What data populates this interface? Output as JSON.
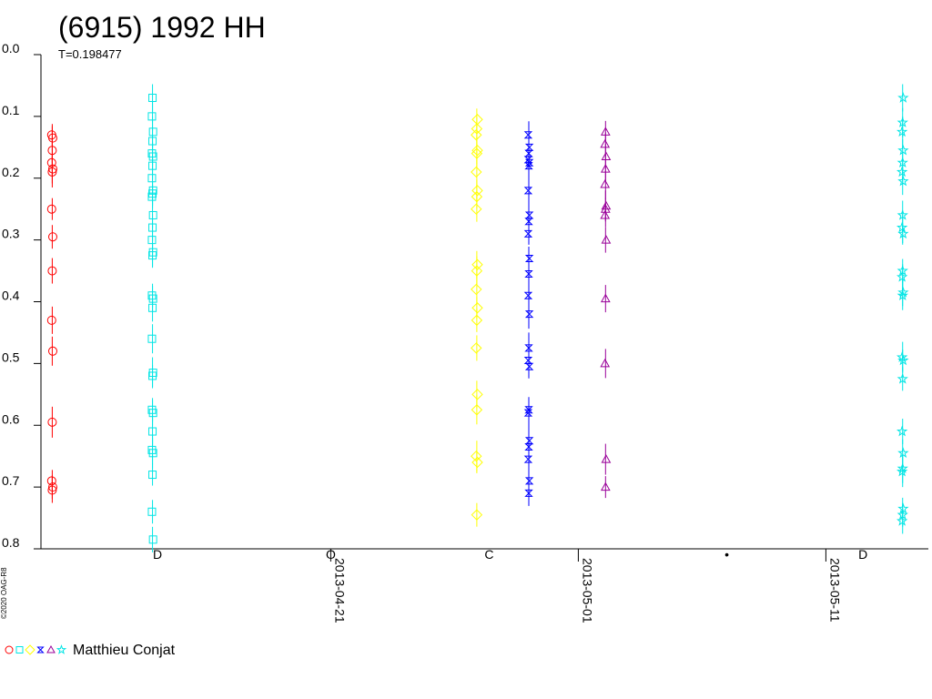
{
  "chart_data": {
    "type": "scatter",
    "title": "(6915) 1992 HH",
    "subtitle": "T=0.198477",
    "ylim": [
      0.0,
      0.8
    ],
    "y_inverted": true,
    "y_ticks": [
      "0.0",
      "0.1",
      "0.2",
      "0.3",
      "0.4",
      "0.5",
      "0.6",
      "0.7",
      "0.8"
    ],
    "x_ticks": [
      "2013-04-21",
      "2013-05-01",
      "2013-05-11"
    ],
    "x_tick_days": [
      12.0,
      22.0,
      32.0
    ],
    "xlim_days": [
      0.0,
      35.0
    ],
    "moon_markers": [
      {
        "day": 5.0,
        "symbol": "D"
      },
      {
        "day": 12.0,
        "symbol": "O"
      },
      {
        "day": 18.4,
        "symbol": "C"
      },
      {
        "day": 28.0,
        "symbol": "•"
      },
      {
        "day": 33.5,
        "symbol": "D"
      }
    ],
    "copyright": "©2020 OAG-R8",
    "legend": {
      "label": "Matthieu Conjat",
      "placement": "bottom-left"
    },
    "series": [
      {
        "marker": "circle",
        "color": "#ff0000",
        "x_day": 0.75,
        "y": [
          0.13,
          0.135,
          0.155,
          0.175,
          0.185,
          0.19,
          0.25,
          0.295,
          0.35,
          0.43,
          0.48,
          0.595,
          0.69,
          0.7,
          0.705
        ]
      },
      {
        "marker": "square",
        "color": "#00e5e5",
        "x_day": 4.8,
        "y": [
          0.07,
          0.1,
          0.125,
          0.14,
          0.16,
          0.165,
          0.18,
          0.2,
          0.22,
          0.225,
          0.23,
          0.26,
          0.28,
          0.3,
          0.32,
          0.325,
          0.39,
          0.395,
          0.41,
          0.46,
          0.515,
          0.52,
          0.575,
          0.58,
          0.61,
          0.64,
          0.645,
          0.68,
          0.74,
          0.785
        ]
      },
      {
        "marker": "diamond",
        "color": "#ffff00",
        "x_day": 17.9,
        "y": [
          0.105,
          0.12,
          0.13,
          0.155,
          0.16,
          0.19,
          0.22,
          0.23,
          0.25,
          0.34,
          0.35,
          0.38,
          0.41,
          0.43,
          0.475,
          0.55,
          0.575,
          0.65,
          0.66,
          0.745
        ]
      },
      {
        "marker": "hourglass",
        "color": "#0000ff",
        "x_day": 20.0,
        "y": [
          0.13,
          0.15,
          0.16,
          0.17,
          0.175,
          0.18,
          0.22,
          0.26,
          0.27,
          0.29,
          0.33,
          0.355,
          0.39,
          0.42,
          0.475,
          0.495,
          0.505,
          0.575,
          0.58,
          0.625,
          0.635,
          0.655,
          0.69,
          0.71
        ]
      },
      {
        "marker": "triangle",
        "color": "#990099",
        "x_day": 23.1,
        "y": [
          0.125,
          0.145,
          0.165,
          0.185,
          0.21,
          0.245,
          0.25,
          0.26,
          0.3,
          0.395,
          0.5,
          0.655,
          0.7
        ]
      },
      {
        "marker": "star",
        "color": "#00e5e5",
        "x_day": 35.1,
        "y": [
          0.07,
          0.11,
          0.125,
          0.155,
          0.175,
          0.19,
          0.205,
          0.26,
          0.28,
          0.29,
          0.35,
          0.36,
          0.385,
          0.39,
          0.49,
          0.495,
          0.525,
          0.61,
          0.645,
          0.67,
          0.675,
          0.735,
          0.745,
          0.755
        ]
      }
    ]
  }
}
